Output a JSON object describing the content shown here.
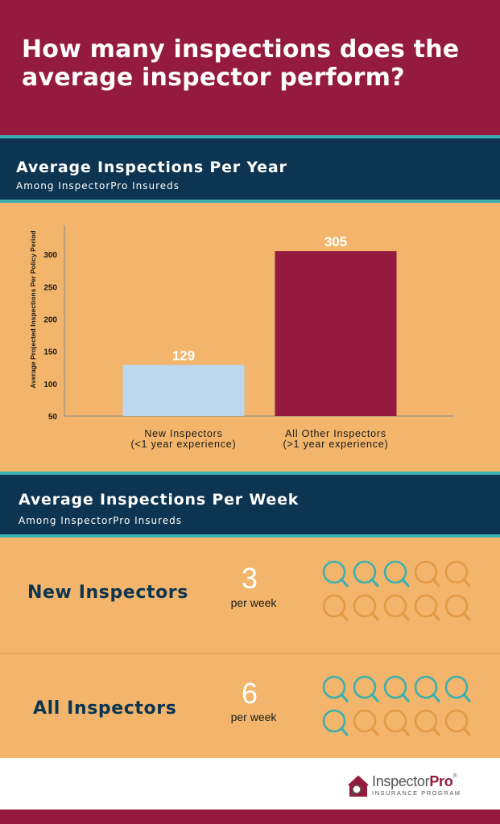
{
  "header": {
    "title": "How many inspections does the average inspector perform?"
  },
  "year_section": {
    "title": "Average Inspections Per Year",
    "subtitle": "Among InspectorPro Insureds"
  },
  "chart_data": {
    "type": "bar",
    "title": "Average Inspections Per Year",
    "ylabel": "Average Projected Inspections Per Policy Period",
    "xlabel": "",
    "ylim": [
      50,
      340
    ],
    "yticks": [
      50,
      100,
      150,
      200,
      250,
      300
    ],
    "categories": [
      [
        "New Inspectors",
        "(<1 year experience)"
      ],
      [
        "All Other Inspectors",
        "(>1 year experience)"
      ]
    ],
    "values": [
      129,
      305
    ],
    "data_labels": [
      "129",
      "305"
    ],
    "colors": [
      "#bdd7f0",
      "#951a3f"
    ],
    "grid": false,
    "legend": "none"
  },
  "week_section": {
    "title": "Average Inspections Per Week",
    "subtitle": "Among InspectorPro Insureds",
    "rows": [
      {
        "label": "New Inspectors",
        "value": "3",
        "unit": "per week",
        "filled": 3,
        "total": 10
      },
      {
        "label": "All Inspectors",
        "value": "6",
        "unit": "per week",
        "filled": 6,
        "total": 10
      }
    ],
    "icon": "magnifying-glass-icon",
    "icon_filled_color": "#3bb0b0",
    "icon_empty_color": "#e49a44"
  },
  "footer": {
    "logo_text_light": "Inspector",
    "logo_text_bold": "Pro",
    "logo_trademark": "®",
    "logo_sub": "INSURANCE PROGRAM"
  },
  "colors": {
    "brand_maroon": "#951a3f",
    "navy": "#0d3450",
    "teal": "#3bb0b0",
    "orange_bg": "#f2b56b"
  }
}
